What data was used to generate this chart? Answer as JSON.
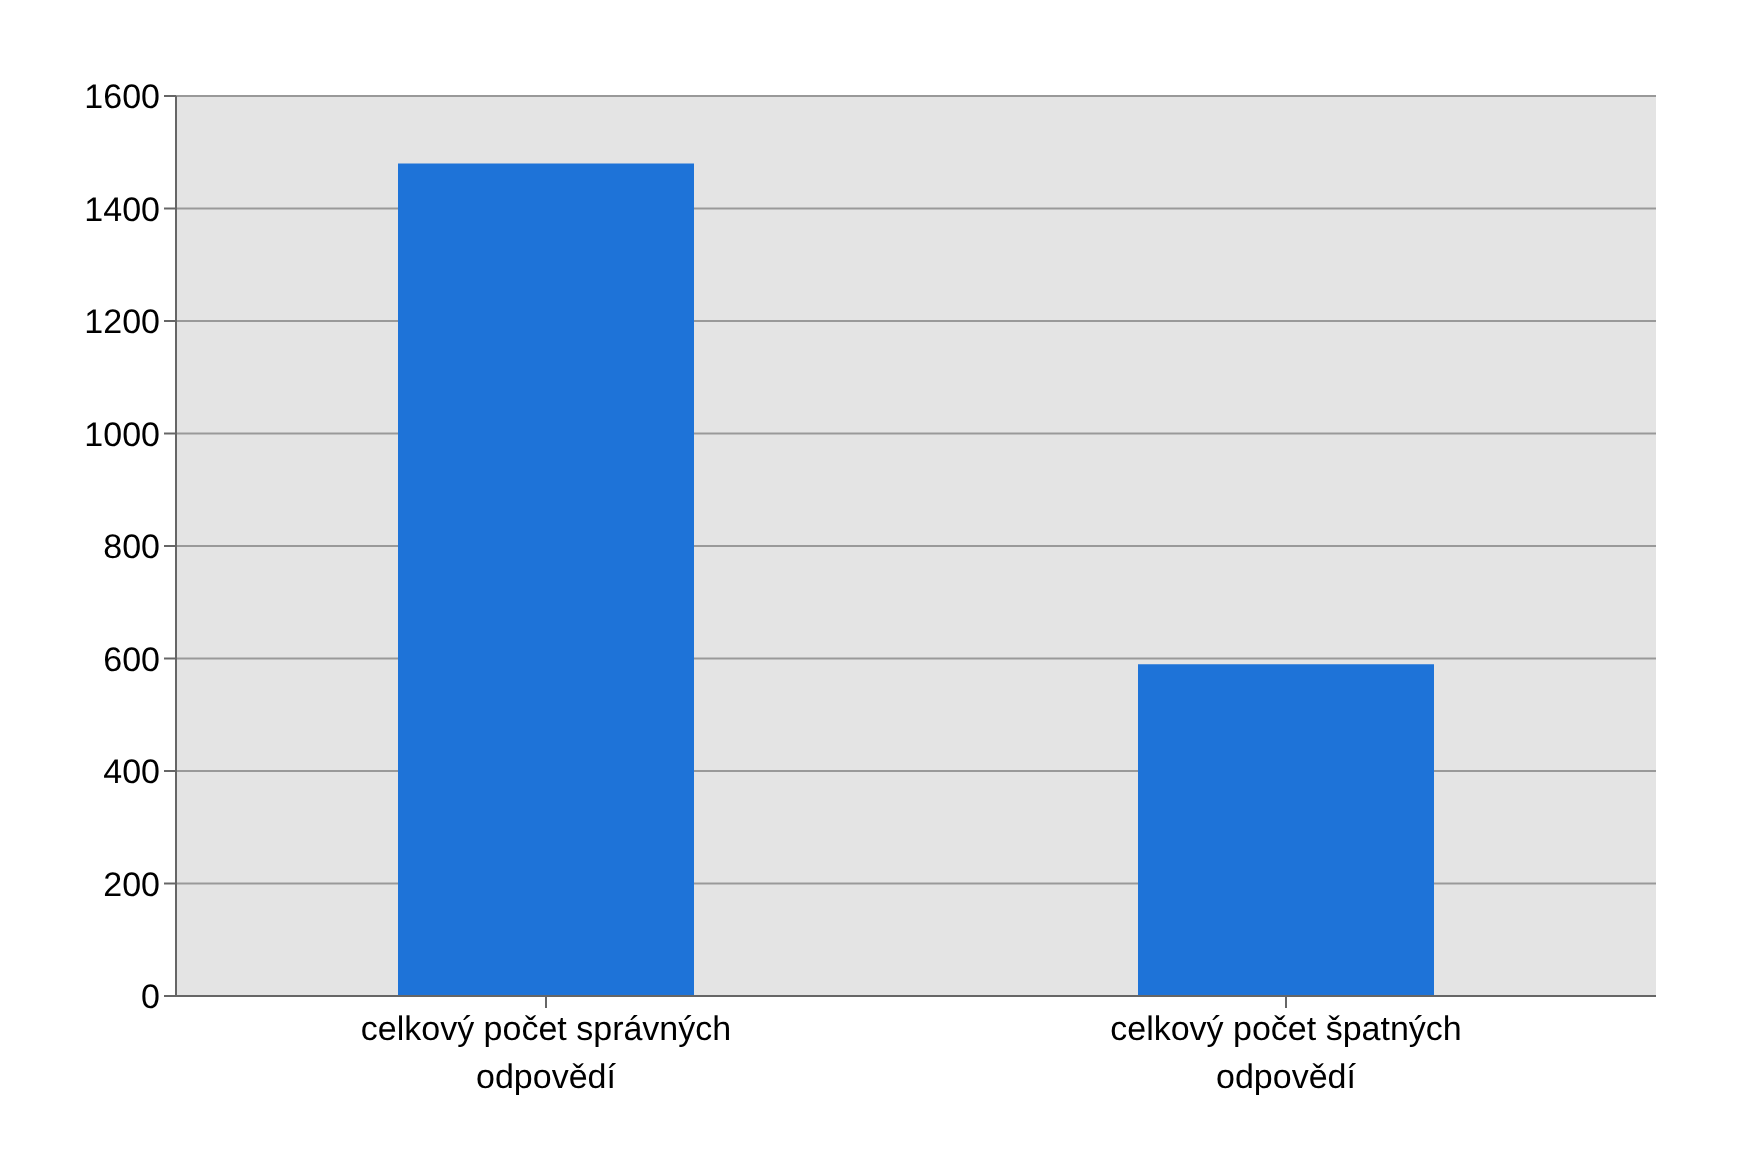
{
  "chart_data": {
    "type": "bar",
    "categories": [
      "celkový počet správných odpovědí",
      "celkový počet špatných odpovědí"
    ],
    "values": [
      1480,
      590
    ],
    "color": "#1e73d8",
    "ylim": [
      0,
      1600
    ],
    "yticks": [
      0,
      200,
      400,
      600,
      800,
      1000,
      1200,
      1400,
      1600
    ],
    "grid": "y"
  }
}
